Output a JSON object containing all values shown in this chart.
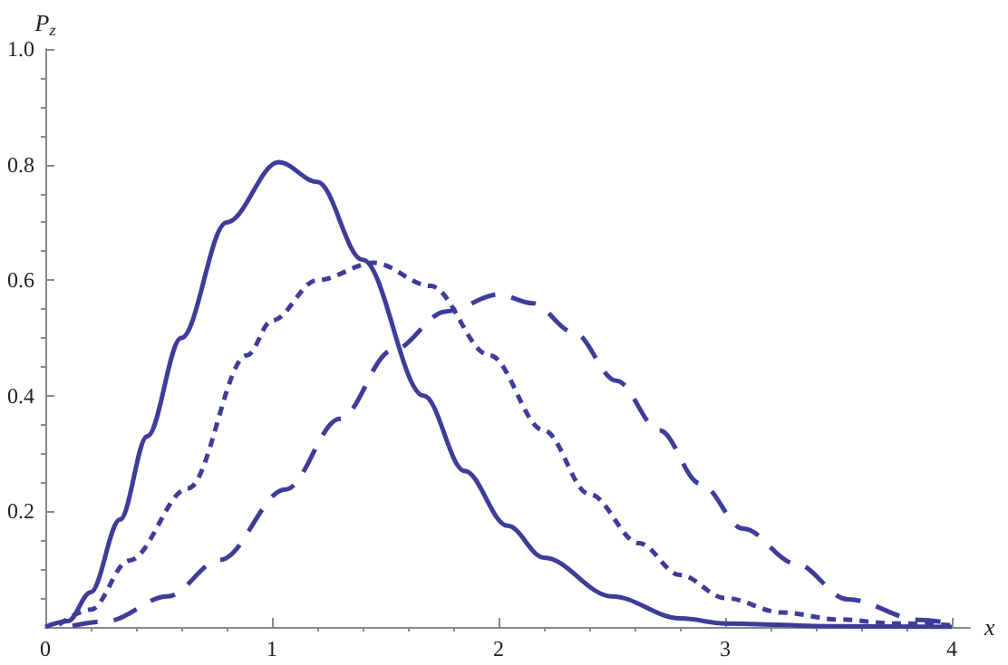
{
  "chart_data": {
    "type": "line",
    "xlabel": "x",
    "ylabel": "P$_{z}$",
    "xlim": [
      0,
      4.08
    ],
    "ylim": [
      0,
      1
    ],
    "xticks": [
      0,
      {
        "value": 0.2,
        "label": null
      },
      {
        "value": 0.4,
        "label": null
      },
      {
        "value": 0.6,
        "label": null
      },
      {
        "value": 0.8,
        "label": null
      },
      1,
      {
        "value": 1.2,
        "label": null
      },
      {
        "value": 1.4,
        "label": null
      },
      {
        "value": 1.6,
        "label": null
      },
      {
        "value": 1.8,
        "label": null
      },
      2,
      {
        "value": 2.2,
        "label": null
      },
      {
        "value": 2.4,
        "label": null
      },
      {
        "value": 2.6,
        "label": null
      },
      {
        "value": 2.8,
        "label": null
      },
      3,
      {
        "value": 3.2,
        "label": null
      },
      {
        "value": 3.4,
        "label": null
      },
      {
        "value": 3.6,
        "label": null
      },
      {
        "value": 3.8,
        "label": null
      },
      4
    ],
    "yticks": [
      {
        "value": 0.05,
        "label": null
      },
      {
        "value": 0.1,
        "label": null
      },
      {
        "value": 0.15,
        "label": null
      },
      0.2,
      {
        "value": 0.25,
        "label": null
      },
      {
        "value": 0.3,
        "label": null
      },
      {
        "value": 0.35,
        "label": null
      },
      0.4,
      {
        "value": 0.45,
        "label": null
      },
      {
        "value": 0.5,
        "label": null
      },
      {
        "value": 0.55,
        "label": null
      },
      0.6,
      {
        "value": 0.65,
        "label": null
      },
      {
        "value": 0.7,
        "label": null
      },
      {
        "value": 0.75,
        "label": null
      },
      0.8,
      {
        "value": 0.85,
        "label": null
      },
      {
        "value": 0.9,
        "label": null
      },
      {
        "value": 0.95,
        "label": null
      },
      {
        "value": 1,
        "label": "1.0"
      }
    ],
    "grid": false,
    "marker": "none",
    "series": [
      {
        "color": "#3d3d99",
        "line_style": "solid",
        "x": [
          0,
          0.1,
          0.2,
          0.33,
          0.45,
          0.6,
          0.8,
          1.03,
          1.2,
          1.4,
          1.67,
          1.85,
          2.04,
          2.2,
          2.5,
          2.8,
          3.0,
          3.5,
          4
        ],
        "values": [
          0,
          0.01,
          0.06,
          0.186,
          0.33,
          0.5,
          0.7,
          0.804,
          0.77,
          0.635,
          0.4,
          0.27,
          0.175,
          0.12,
          0.053,
          0.015,
          0.006,
          0.001,
          0
        ]
      },
      {
        "color": "#3d3d99",
        "line_style": "dotted",
        "x": [
          0.06,
          0.2,
          0.37,
          0.63,
          0.89,
          1.0,
          1.2,
          1.45,
          1.7,
          1.96,
          2.2,
          2.4,
          2.62,
          2.8,
          3.0,
          3.25,
          3.5,
          3.75,
          4
        ],
        "values": [
          0.004,
          0.03,
          0.115,
          0.24,
          0.47,
          0.53,
          0.6,
          0.63,
          0.59,
          0.47,
          0.34,
          0.23,
          0.145,
          0.09,
          0.05,
          0.025,
          0.013,
          0.006,
          0.003
        ]
      },
      {
        "color": "#3d3d99",
        "line_style": "dashed",
        "x": [
          0.12,
          0.27,
          0.54,
          0.77,
          1.06,
          1.3,
          1.53,
          1.77,
          2.0,
          2.15,
          2.33,
          2.52,
          2.71,
          2.89,
          3.08,
          3.31,
          3.54,
          3.86,
          4
        ],
        "values": [
          0.002,
          0.01,
          0.053,
          0.116,
          0.238,
          0.36,
          0.478,
          0.546,
          0.575,
          0.56,
          0.51,
          0.426,
          0.34,
          0.248,
          0.17,
          0.11,
          0.048,
          0.012,
          0.006
        ]
      }
    ]
  }
}
